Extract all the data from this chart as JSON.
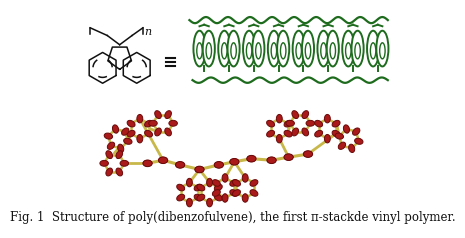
{
  "caption": "Fig. 1  Structure of poly(dibenzofulvene), the first π-stackde vinyl polymer.",
  "caption_fontsize": 8.5,
  "bg_color": "#ffffff",
  "fig_width": 4.16,
  "fig_height": 2.84,
  "green_color": "#1e6b1e",
  "bond_color": "#c8b84a",
  "atom_color": "#aa1a1a",
  "atom_edge": "#6a0a0a"
}
